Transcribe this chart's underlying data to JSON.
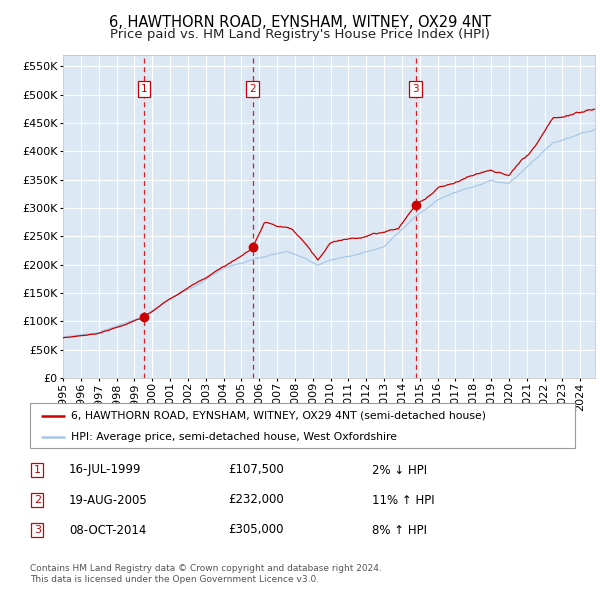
{
  "title": "6, HAWTHORN ROAD, EYNSHAM, WITNEY, OX29 4NT",
  "subtitle": "Price paid vs. HM Land Registry's House Price Index (HPI)",
  "legend_line1": "6, HAWTHORN ROAD, EYNSHAM, WITNEY, OX29 4NT (semi-detached house)",
  "legend_line2": "HPI: Average price, semi-detached house, West Oxfordshire",
  "footer1": "Contains HM Land Registry data © Crown copyright and database right 2024.",
  "footer2": "This data is licensed under the Open Government Licence v3.0.",
  "transactions": [
    {
      "num": 1,
      "date": "16-JUL-1999",
      "price": "£107,500",
      "hpi_pct": "2%",
      "hpi_dir": "↓"
    },
    {
      "num": 2,
      "date": "19-AUG-2005",
      "price": "£232,000",
      "hpi_pct": "11%",
      "hpi_dir": "↑"
    },
    {
      "num": 3,
      "date": "08-OCT-2014",
      "price": "£305,000",
      "hpi_pct": "8%",
      "hpi_dir": "↑"
    }
  ],
  "transaction_dates_decimal": [
    1999.54,
    2005.63,
    2014.77
  ],
  "transaction_prices": [
    107500,
    232000,
    305000
  ],
  "ylim": [
    0,
    570000
  ],
  "yticks": [
    0,
    50000,
    100000,
    150000,
    200000,
    250000,
    300000,
    350000,
    400000,
    450000,
    500000,
    550000
  ],
  "xlim_start": 1995.0,
  "xlim_end": 2024.83,
  "plot_bg_color": "#dce9f5",
  "grid_color": "#ffffff",
  "hpi_line_color": "#a8c8e8",
  "price_line_color": "#cc0000",
  "dot_color": "#cc0000",
  "vline_color": "#cc0000",
  "box_edge_color": "#cc0000",
  "title_fontsize": 10.5,
  "subtitle_fontsize": 9.5,
  "tick_fontsize": 8,
  "label_fontsize": 8
}
